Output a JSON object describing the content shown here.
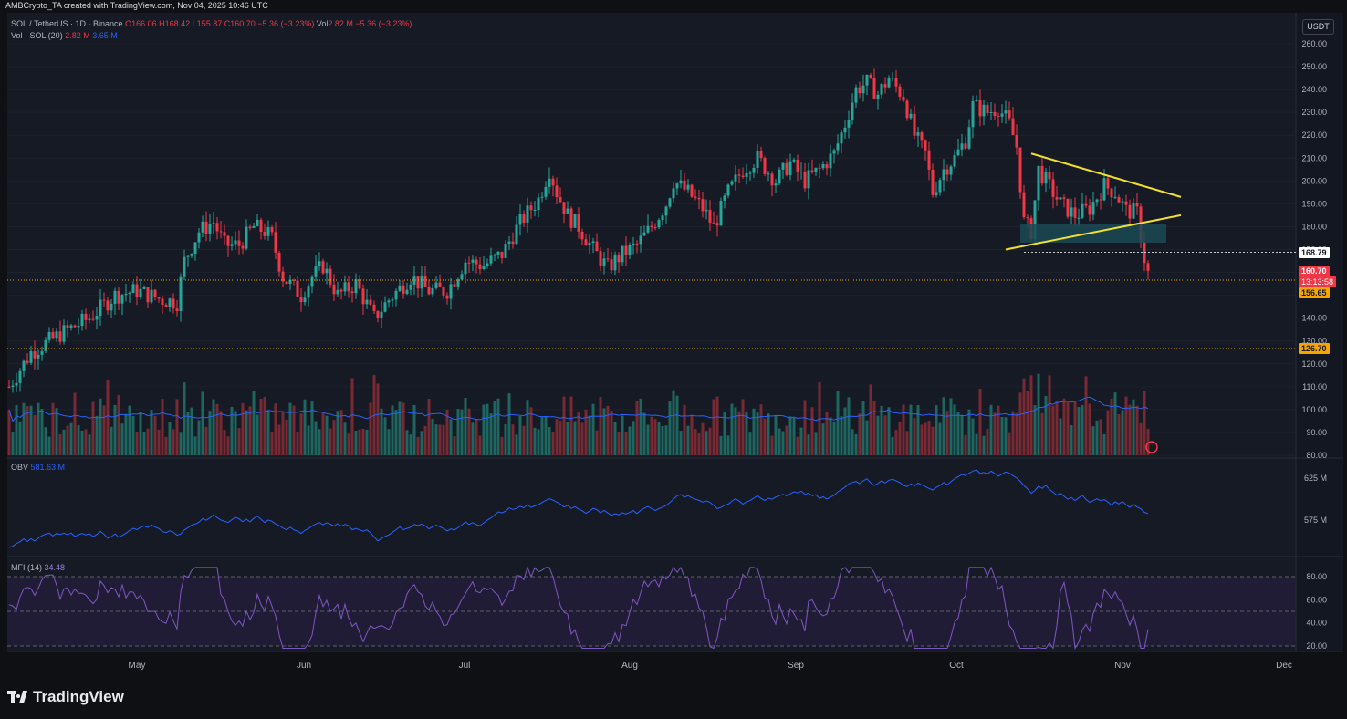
{
  "header": {
    "attribution": "AMBCrypto_TA created with TradingView.com, Nov 04, 2025 10:46 UTC"
  },
  "legend": {
    "symbol": "SOL / TetherUS · 1D · Binance",
    "open": "O166.06",
    "high": "H168.42",
    "low": "L155.87",
    "close": "C160.70",
    "change": "−5.36 (−3.23%)",
    "vol_label": "Vol",
    "vol_value": "2.82 M",
    "vol_change": "−5.36 (−3.23%)",
    "vol_indicator": "Vol · SOL (20)",
    "vol_current": "2.82 M",
    "vol_ma": "3.65 M",
    "obv_label": "OBV",
    "obv_value": "581.63 M",
    "mfi_label": "MFI (14)",
    "mfi_value": "34.48"
  },
  "price_axis": {
    "currency": "USDT",
    "ticks": [
      "260.00",
      "250.00",
      "240.00",
      "230.00",
      "220.00",
      "210.00",
      "200.00",
      "190.00",
      "180.00",
      "170.00",
      "160.00",
      "150.00",
      "140.00",
      "130.00",
      "120.00",
      "110.00",
      "100.00",
      "90.00",
      "80.00"
    ],
    "tag_168": "168.79",
    "tag_last": "160.70",
    "tag_countdown": "13:13:58",
    "tag_156": "156.65",
    "tag_126": "126.70"
  },
  "obv_axis": {
    "ticks": [
      "625 M",
      "575 M"
    ]
  },
  "mfi_axis": {
    "ticks": [
      "80.00",
      "60.00",
      "40.00",
      "20.00"
    ]
  },
  "time_axis": {
    "labels": [
      "May",
      "Jun",
      "Jul",
      "Aug",
      "Sep",
      "Oct",
      "Nov",
      "Dec"
    ]
  },
  "footer": {
    "brand": "TradingView"
  },
  "colors": {
    "up": "#26a69a",
    "down": "#f23645",
    "vol_ma": "#2962ff",
    "obv": "#2962ff",
    "mfi": "#7e57c2",
    "trend": "#f0e130",
    "box": "#1b4a55",
    "hline": "#f7a600"
  },
  "chart_data": {
    "type": "candlestick",
    "symbol": "SOL / TetherUS",
    "interval": "1D",
    "ylim": [
      80,
      262
    ],
    "anchors": [
      {
        "t": 0,
        "v": 110
      },
      {
        "t": 6,
        "v": 125
      },
      {
        "t": 14,
        "v": 133
      },
      {
        "t": 22,
        "v": 140
      },
      {
        "t": 29,
        "v": 150
      },
      {
        "t": 35,
        "v": 152
      },
      {
        "t": 42,
        "v": 148
      },
      {
        "t": 46,
        "v": 147
      },
      {
        "t": 48,
        "v": 165
      },
      {
        "t": 52,
        "v": 178
      },
      {
        "t": 56,
        "v": 182
      },
      {
        "t": 59,
        "v": 172
      },
      {
        "t": 63,
        "v": 172
      },
      {
        "t": 67,
        "v": 180
      },
      {
        "t": 70,
        "v": 178
      },
      {
        "t": 72,
        "v": 175
      },
      {
        "t": 75,
        "v": 158
      },
      {
        "t": 80,
        "v": 150
      },
      {
        "t": 83,
        "v": 158
      },
      {
        "t": 86,
        "v": 163
      },
      {
        "t": 90,
        "v": 150
      },
      {
        "t": 95,
        "v": 155
      },
      {
        "t": 100,
        "v": 140
      },
      {
        "t": 104,
        "v": 148
      },
      {
        "t": 110,
        "v": 158
      },
      {
        "t": 115,
        "v": 152
      },
      {
        "t": 120,
        "v": 152
      },
      {
        "t": 125,
        "v": 165
      },
      {
        "t": 130,
        "v": 163
      },
      {
        "t": 135,
        "v": 168
      },
      {
        "t": 140,
        "v": 182
      },
      {
        "t": 145,
        "v": 192
      },
      {
        "t": 148,
        "v": 205
      },
      {
        "t": 150,
        "v": 195
      },
      {
        "t": 153,
        "v": 185
      },
      {
        "t": 156,
        "v": 180
      },
      {
        "t": 160,
        "v": 170
      },
      {
        "t": 164,
        "v": 162
      },
      {
        "t": 168,
        "v": 168
      },
      {
        "t": 172,
        "v": 172
      },
      {
        "t": 176,
        "v": 180
      },
      {
        "t": 180,
        "v": 190
      },
      {
        "t": 182,
        "v": 200
      },
      {
        "t": 186,
        "v": 195
      },
      {
        "t": 190,
        "v": 188
      },
      {
        "t": 193,
        "v": 180
      },
      {
        "t": 197,
        "v": 195
      },
      {
        "t": 201,
        "v": 205
      },
      {
        "t": 205,
        "v": 210
      },
      {
        "t": 210,
        "v": 200
      },
      {
        "t": 214,
        "v": 208
      },
      {
        "t": 218,
        "v": 200
      },
      {
        "t": 222,
        "v": 205
      },
      {
        "t": 226,
        "v": 212
      },
      {
        "t": 229,
        "v": 225
      },
      {
        "t": 232,
        "v": 240
      },
      {
        "t": 235,
        "v": 243
      },
      {
        "t": 238,
        "v": 238
      },
      {
        "t": 241,
        "v": 245
      },
      {
        "t": 245,
        "v": 237
      },
      {
        "t": 248,
        "v": 220
      },
      {
        "t": 251,
        "v": 212
      },
      {
        "t": 253,
        "v": 195
      },
      {
        "t": 256,
        "v": 205
      },
      {
        "t": 259,
        "v": 210
      },
      {
        "t": 262,
        "v": 218
      },
      {
        "t": 264,
        "v": 233
      },
      {
        "t": 268,
        "v": 230
      },
      {
        "t": 271,
        "v": 232
      },
      {
        "t": 274,
        "v": 225
      },
      {
        "t": 276,
        "v": 215
      },
      {
        "t": 278,
        "v": 182
      },
      {
        "t": 280,
        "v": 178
      },
      {
        "t": 282,
        "v": 205
      },
      {
        "t": 284,
        "v": 200
      },
      {
        "t": 288,
        "v": 190
      },
      {
        "t": 292,
        "v": 185
      },
      {
        "t": 296,
        "v": 188
      },
      {
        "t": 300,
        "v": 198
      },
      {
        "t": 303,
        "v": 195
      },
      {
        "t": 306,
        "v": 187
      },
      {
        "t": 309,
        "v": 186
      },
      {
        "t": 311,
        "v": 166
      },
      {
        "t": 312,
        "v": 160.7
      }
    ],
    "volume_ma": 3.65,
    "obv_ticks": [
      "625 M",
      "575 M"
    ],
    "mfi_bands": [
      80,
      50,
      20
    ],
    "mfi_last": 34.48,
    "obv_last": "581.63 M",
    "horizontal_levels": [
      168.79,
      156.65,
      126.7
    ],
    "x_labels": [
      "May",
      "Jun",
      "Jul",
      "Aug",
      "Sep",
      "Oct",
      "Nov",
      "Dec"
    ]
  }
}
